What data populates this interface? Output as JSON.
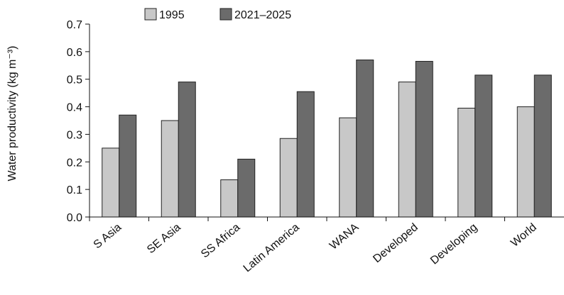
{
  "chart_data": {
    "type": "bar",
    "title": "",
    "xlabel": "",
    "ylabel": "Water productivity (kg m⁻³)",
    "ylim": [
      0,
      0.7
    ],
    "yticks": [
      "0.0",
      "0.1",
      "0.2",
      "0.3",
      "0.4",
      "0.5",
      "0.6",
      "0.7"
    ],
    "categories": [
      "S Asia",
      "SE Asia",
      "SS Africa",
      "Latin America",
      "WANA",
      "Developed",
      "Developing",
      "World"
    ],
    "series": [
      {
        "name": "1995",
        "color": "#c8c8c8",
        "values": [
          0.25,
          0.35,
          0.135,
          0.285,
          0.36,
          0.49,
          0.395,
          0.4
        ]
      },
      {
        "name": "2021–2025",
        "color": "#6b6b6b",
        "values": [
          0.37,
          0.49,
          0.21,
          0.455,
          0.57,
          0.565,
          0.515,
          0.515
        ]
      }
    ],
    "grid": false,
    "legend": "top"
  }
}
